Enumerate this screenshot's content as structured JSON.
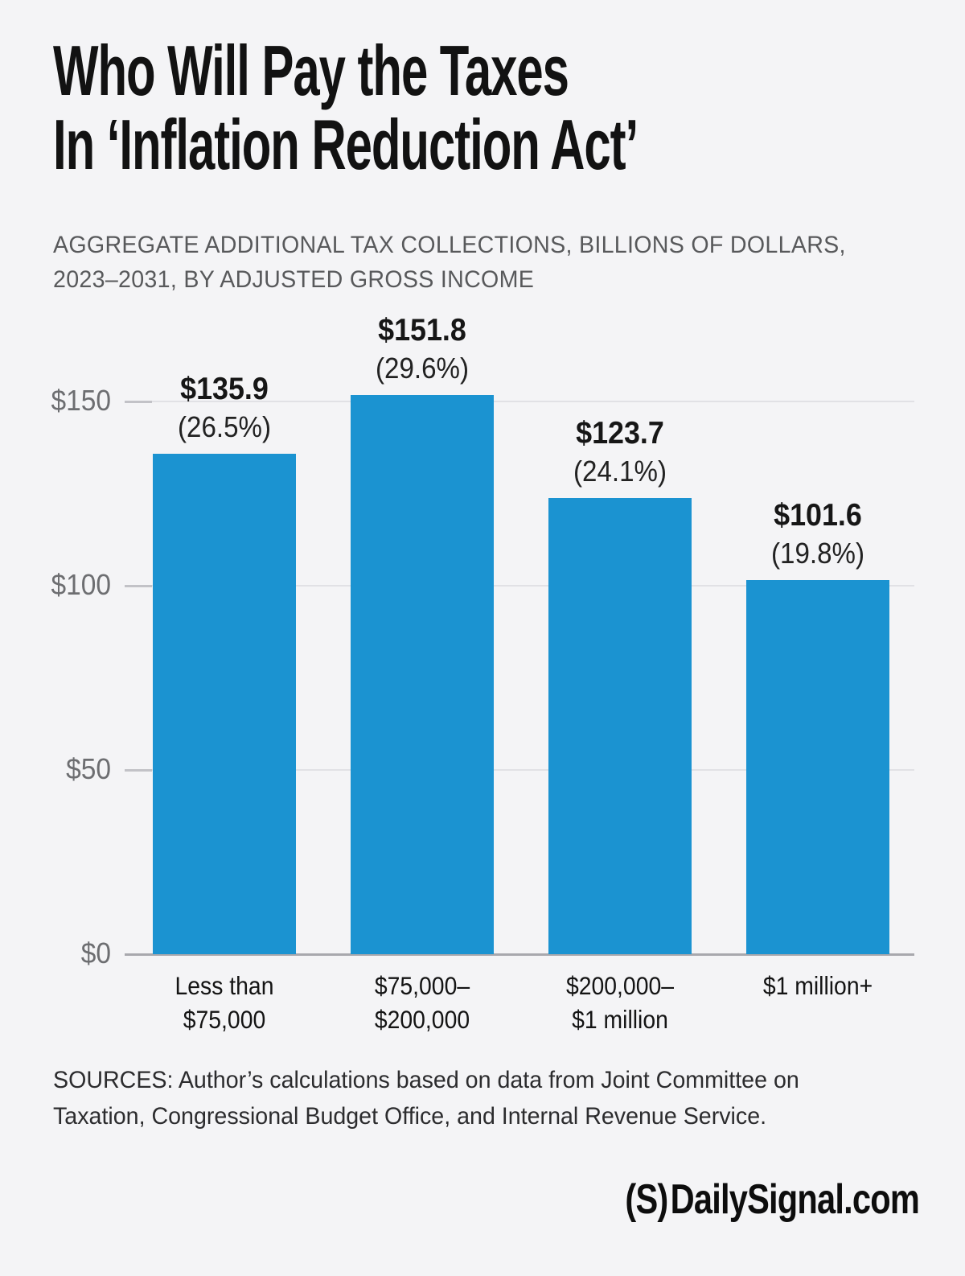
{
  "page": {
    "background": "#f4f4f6"
  },
  "header": {
    "title_lines": [
      "Who Will Pay the Taxes",
      "In ‘Inflation Reduction Act’"
    ],
    "subtitle_lines": [
      "AGGREGATE ADDITIONAL TAX COLLECTIONS, BILLIONS OF DOLLARS,",
      "2023–2031, BY ADJUSTED GROSS INCOME"
    ]
  },
  "chart_data": {
    "type": "bar",
    "title": "Who Will Pay the Taxes In ‘Inflation Reduction Act’",
    "subtitle": "Aggregate additional tax collections, billions of dollars, 2023–2031, by adjusted gross income",
    "categories": [
      [
        "Less than",
        "$75,000"
      ],
      [
        "$75,000–",
        "$200,000"
      ],
      [
        "$200,000–",
        "$1 million"
      ],
      [
        "$1 million+"
      ]
    ],
    "values": [
      135.9,
      151.8,
      123.7,
      101.6
    ],
    "value_labels": [
      "$135.9",
      "$151.8",
      "$123.7",
      "$101.6"
    ],
    "pct_labels": [
      "(26.5%)",
      "(29.6%)",
      "(24.1%)",
      "(19.8%)"
    ],
    "xlabel": "",
    "ylabel": "",
    "ylim": [
      0,
      165
    ],
    "yticks": [
      {
        "label": "$150",
        "value": 150
      },
      {
        "label": "$100",
        "value": 100
      },
      {
        "label": "$50",
        "value": 50
      },
      {
        "label": "$0",
        "value": 0
      }
    ],
    "grid": true,
    "legend": false,
    "bar_color": "#1b93d1",
    "grid_color": "#e1e1e5",
    "axis_color": "#a8a8ad"
  },
  "footer": {
    "sources_lines": [
      "SOURCES: Author’s calculations based on data from Joint Committee on",
      "Taxation, Congressional Budget Office, and Internal Revenue Service."
    ],
    "logo_mark": "(S)",
    "logo_text": "DailySignal.com"
  }
}
